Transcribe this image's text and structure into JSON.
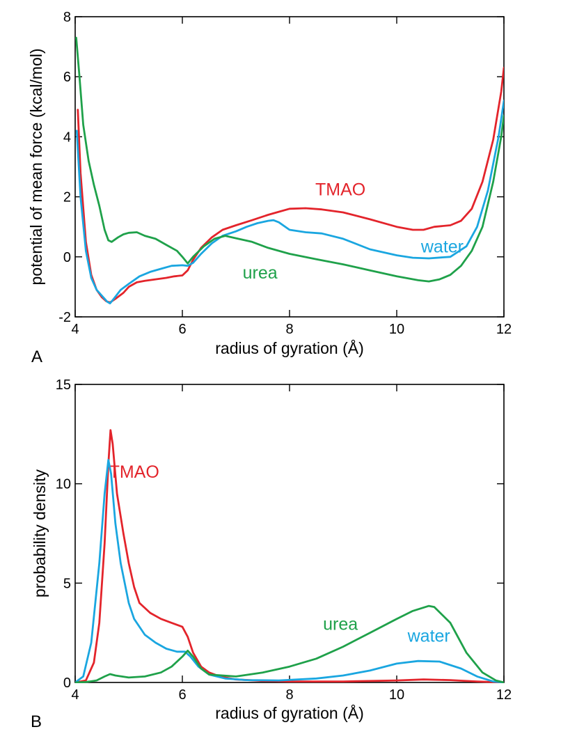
{
  "chart_data": [
    {
      "panel": "A",
      "type": "line",
      "xlabel": "radius of gyration (Å)",
      "ylabel": "potential of mean force (kcal/mol)",
      "xlim": [
        4,
        12
      ],
      "ylim": [
        -2,
        8
      ],
      "xticks": [
        4,
        6,
        8,
        10,
        12
      ],
      "yticks": [
        -2,
        0,
        2,
        4,
        6,
        8
      ],
      "xtick_labels": [
        "4",
        "6",
        "8",
        "10",
        "12"
      ],
      "ytick_labels": [
        "-2",
        "0",
        "2",
        "4",
        "6",
        "8"
      ],
      "series": [
        {
          "name": "TMAO",
          "label": "TMAO",
          "color": "#e3242b",
          "label_at": [
            8.95,
            2.05
          ],
          "points": [
            [
              4.05,
              4.9
            ],
            [
              4.1,
              2.8
            ],
            [
              4.2,
              0.5
            ],
            [
              4.3,
              -0.6
            ],
            [
              4.4,
              -1.1
            ],
            [
              4.5,
              -1.35
            ],
            [
              4.58,
              -1.48
            ],
            [
              4.65,
              -1.52
            ],
            [
              4.75,
              -1.4
            ],
            [
              4.9,
              -1.2
            ],
            [
              5.0,
              -1.0
            ],
            [
              5.15,
              -0.85
            ],
            [
              5.3,
              -0.8
            ],
            [
              5.5,
              -0.75
            ],
            [
              5.7,
              -0.7
            ],
            [
              5.85,
              -0.65
            ],
            [
              6.0,
              -0.62
            ],
            [
              6.1,
              -0.45
            ],
            [
              6.2,
              -0.1
            ],
            [
              6.35,
              0.3
            ],
            [
              6.55,
              0.65
            ],
            [
              6.75,
              0.9
            ],
            [
              7.0,
              1.05
            ],
            [
              7.3,
              1.22
            ],
            [
              7.6,
              1.4
            ],
            [
              7.8,
              1.5
            ],
            [
              8.0,
              1.6
            ],
            [
              8.3,
              1.62
            ],
            [
              8.6,
              1.58
            ],
            [
              9.0,
              1.48
            ],
            [
              9.5,
              1.25
            ],
            [
              10.0,
              1.0
            ],
            [
              10.3,
              0.9
            ],
            [
              10.5,
              0.9
            ],
            [
              10.7,
              1.0
            ],
            [
              11.0,
              1.05
            ],
            [
              11.2,
              1.2
            ],
            [
              11.4,
              1.6
            ],
            [
              11.6,
              2.5
            ],
            [
              11.8,
              3.9
            ],
            [
              11.95,
              5.5
            ],
            [
              12.0,
              6.3
            ]
          ]
        },
        {
          "name": "water",
          "label": "water",
          "color": "#1aa6e0",
          "label_at": [
            10.85,
            0.15
          ],
          "points": [
            [
              4.03,
              4.2
            ],
            [
              4.1,
              2.0
            ],
            [
              4.2,
              0.2
            ],
            [
              4.3,
              -0.7
            ],
            [
              4.4,
              -1.1
            ],
            [
              4.5,
              -1.3
            ],
            [
              4.6,
              -1.5
            ],
            [
              4.65,
              -1.55
            ],
            [
              4.72,
              -1.4
            ],
            [
              4.85,
              -1.1
            ],
            [
              5.0,
              -0.9
            ],
            [
              5.2,
              -0.65
            ],
            [
              5.4,
              -0.5
            ],
            [
              5.6,
              -0.4
            ],
            [
              5.8,
              -0.3
            ],
            [
              6.0,
              -0.28
            ],
            [
              6.1,
              -0.3
            ],
            [
              6.2,
              -0.2
            ],
            [
              6.35,
              0.1
            ],
            [
              6.55,
              0.45
            ],
            [
              6.75,
              0.7
            ],
            [
              7.0,
              0.85
            ],
            [
              7.2,
              1.0
            ],
            [
              7.4,
              1.12
            ],
            [
              7.6,
              1.2
            ],
            [
              7.7,
              1.22
            ],
            [
              7.8,
              1.15
            ],
            [
              8.0,
              0.9
            ],
            [
              8.3,
              0.82
            ],
            [
              8.6,
              0.78
            ],
            [
              9.0,
              0.6
            ],
            [
              9.5,
              0.25
            ],
            [
              10.0,
              0.05
            ],
            [
              10.3,
              -0.03
            ],
            [
              10.6,
              -0.05
            ],
            [
              11.0,
              0.0
            ],
            [
              11.3,
              0.35
            ],
            [
              11.5,
              1.0
            ],
            [
              11.7,
              2.2
            ],
            [
              11.9,
              4.0
            ],
            [
              12.0,
              5.2
            ]
          ]
        },
        {
          "name": "urea",
          "label": "urea",
          "color": "#1fa14a",
          "label_at": [
            7.45,
            -0.72
          ],
          "points": [
            [
              4.02,
              7.3
            ],
            [
              4.08,
              6.0
            ],
            [
              4.15,
              4.4
            ],
            [
              4.25,
              3.2
            ],
            [
              4.35,
              2.4
            ],
            [
              4.45,
              1.7
            ],
            [
              4.55,
              0.9
            ],
            [
              4.62,
              0.55
            ],
            [
              4.68,
              0.5
            ],
            [
              4.8,
              0.65
            ],
            [
              4.9,
              0.75
            ],
            [
              5.0,
              0.8
            ],
            [
              5.15,
              0.82
            ],
            [
              5.3,
              0.7
            ],
            [
              5.5,
              0.6
            ],
            [
              5.7,
              0.4
            ],
            [
              5.9,
              0.2
            ],
            [
              6.0,
              0.0
            ],
            [
              6.1,
              -0.22
            ],
            [
              6.2,
              0.0
            ],
            [
              6.4,
              0.35
            ],
            [
              6.6,
              0.6
            ],
            [
              6.8,
              0.7
            ],
            [
              7.0,
              0.62
            ],
            [
              7.3,
              0.5
            ],
            [
              7.6,
              0.3
            ],
            [
              8.0,
              0.1
            ],
            [
              8.5,
              -0.08
            ],
            [
              9.0,
              -0.25
            ],
            [
              9.5,
              -0.45
            ],
            [
              10.0,
              -0.65
            ],
            [
              10.4,
              -0.78
            ],
            [
              10.6,
              -0.82
            ],
            [
              10.8,
              -0.75
            ],
            [
              11.0,
              -0.6
            ],
            [
              11.2,
              -0.3
            ],
            [
              11.4,
              0.2
            ],
            [
              11.6,
              1.0
            ],
            [
              11.8,
              2.5
            ],
            [
              11.95,
              4.0
            ],
            [
              12.0,
              4.7
            ]
          ]
        }
      ]
    },
    {
      "panel": "B",
      "type": "line",
      "xlabel": "radius of gyration (Å)",
      "ylabel": "probability density",
      "xlim": [
        4,
        12
      ],
      "ylim": [
        0,
        15
      ],
      "xticks": [
        4,
        6,
        8,
        10,
        12
      ],
      "yticks": [
        0,
        5,
        10,
        15
      ],
      "xtick_labels": [
        "4",
        "6",
        "8",
        "10",
        "12"
      ],
      "ytick_labels": [
        "0",
        "5",
        "10",
        "15"
      ],
      "series": [
        {
          "name": "TMAO",
          "label": "TMAO",
          "color": "#e3242b",
          "label_at": [
            5.1,
            10.3
          ],
          "points": [
            [
              4.0,
              0.0
            ],
            [
              4.2,
              0.1
            ],
            [
              4.35,
              1.0
            ],
            [
              4.45,
              3.0
            ],
            [
              4.55,
              7.0
            ],
            [
              4.62,
              11.0
            ],
            [
              4.66,
              12.7
            ],
            [
              4.7,
              12.0
            ],
            [
              4.78,
              9.5
            ],
            [
              4.9,
              7.5
            ],
            [
              5.0,
              6.0
            ],
            [
              5.1,
              4.8
            ],
            [
              5.2,
              4.0
            ],
            [
              5.4,
              3.5
            ],
            [
              5.6,
              3.2
            ],
            [
              5.8,
              3.0
            ],
            [
              6.0,
              2.8
            ],
            [
              6.1,
              2.3
            ],
            [
              6.2,
              1.5
            ],
            [
              6.35,
              0.8
            ],
            [
              6.5,
              0.5
            ],
            [
              6.7,
              0.3
            ],
            [
              7.0,
              0.15
            ],
            [
              7.5,
              0.08
            ],
            [
              8.0,
              0.05
            ],
            [
              9.0,
              0.05
            ],
            [
              10.0,
              0.1
            ],
            [
              10.5,
              0.15
            ],
            [
              11.0,
              0.12
            ],
            [
              11.5,
              0.05
            ],
            [
              12.0,
              0.0
            ]
          ]
        },
        {
          "name": "water",
          "label": "water",
          "color": "#1aa6e0",
          "label_at": [
            10.6,
            2.05
          ],
          "points": [
            [
              4.0,
              0.0
            ],
            [
              4.15,
              0.3
            ],
            [
              4.3,
              2.0
            ],
            [
              4.45,
              6.0
            ],
            [
              4.55,
              9.5
            ],
            [
              4.62,
              11.2
            ],
            [
              4.67,
              10.5
            ],
            [
              4.75,
              8.0
            ],
            [
              4.85,
              6.0
            ],
            [
              5.0,
              4.0
            ],
            [
              5.1,
              3.2
            ],
            [
              5.3,
              2.4
            ],
            [
              5.5,
              2.0
            ],
            [
              5.7,
              1.7
            ],
            [
              5.9,
              1.55
            ],
            [
              6.05,
              1.55
            ],
            [
              6.15,
              1.3
            ],
            [
              6.3,
              0.8
            ],
            [
              6.5,
              0.4
            ],
            [
              6.8,
              0.2
            ],
            [
              7.2,
              0.12
            ],
            [
              7.8,
              0.1
            ],
            [
              8.5,
              0.2
            ],
            [
              9.0,
              0.35
            ],
            [
              9.5,
              0.6
            ],
            [
              10.0,
              0.95
            ],
            [
              10.4,
              1.08
            ],
            [
              10.8,
              1.05
            ],
            [
              11.2,
              0.7
            ],
            [
              11.5,
              0.3
            ],
            [
              11.8,
              0.05
            ],
            [
              12.0,
              0.0
            ]
          ]
        },
        {
          "name": "urea",
          "label": "urea",
          "color": "#1fa14a",
          "label_at": [
            8.95,
            2.65
          ],
          "points": [
            [
              4.0,
              0.0
            ],
            [
              4.2,
              0.02
            ],
            [
              4.4,
              0.1
            ],
            [
              4.55,
              0.3
            ],
            [
              4.65,
              0.42
            ],
            [
              4.75,
              0.35
            ],
            [
              5.0,
              0.25
            ],
            [
              5.3,
              0.3
            ],
            [
              5.6,
              0.5
            ],
            [
              5.8,
              0.8
            ],
            [
              6.0,
              1.3
            ],
            [
              6.1,
              1.6
            ],
            [
              6.2,
              1.3
            ],
            [
              6.35,
              0.7
            ],
            [
              6.5,
              0.4
            ],
            [
              7.0,
              0.3
            ],
            [
              7.5,
              0.5
            ],
            [
              8.0,
              0.8
            ],
            [
              8.5,
              1.2
            ],
            [
              9.0,
              1.8
            ],
            [
              9.5,
              2.5
            ],
            [
              10.0,
              3.2
            ],
            [
              10.3,
              3.6
            ],
            [
              10.6,
              3.85
            ],
            [
              10.7,
              3.8
            ],
            [
              11.0,
              3.0
            ],
            [
              11.3,
              1.5
            ],
            [
              11.6,
              0.5
            ],
            [
              11.85,
              0.1
            ],
            [
              12.0,
              0.0
            ]
          ]
        }
      ]
    }
  ]
}
